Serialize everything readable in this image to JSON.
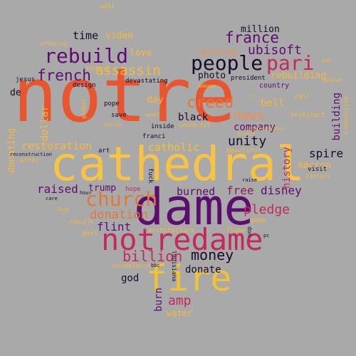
{
  "colors": {
    "background": "#a9a9a9",
    "palette": [
      "#e8562f",
      "#f6b93b",
      "#f1c232",
      "#5c0e6e",
      "#8b1d5a",
      "#c2295e",
      "#e3773a",
      "#1c0a2a",
      "#f08f4a"
    ]
  },
  "words": [
    {
      "text": "notre",
      "color": "#e8562f"
    },
    {
      "text": "cathedral",
      "color": "#f6c344"
    },
    {
      "text": "dame",
      "color": "#5c0e6e"
    },
    {
      "text": "notredame",
      "color": "#c2295e"
    },
    {
      "text": "fire",
      "color": "#f1c232"
    },
    {
      "text": "people",
      "color": "#1c0a2a"
    },
    {
      "text": "pari",
      "color": "#c2295e"
    },
    {
      "text": "rebuild",
      "color": "#5c0e6e"
    },
    {
      "text": "church",
      "color": "#e3773a"
    },
    {
      "text": "france",
      "color": "#5c0e6e"
    },
    {
      "text": "ubisoft",
      "color": "#5c0e6e"
    },
    {
      "text": "french",
      "color": "#5c0e6e"
    },
    {
      "text": "assassin",
      "color": "#f6b93b"
    },
    {
      "text": "creed",
      "color": "#e3773a"
    },
    {
      "text": "money",
      "color": "#1c0a2a"
    },
    {
      "text": "billion",
      "color": "#c2295e"
    },
    {
      "text": "unity",
      "color": "#1c0a2a"
    },
    {
      "text": "news",
      "color": "#f08f4a"
    },
    {
      "text": "disney",
      "color": "#5c0e6e"
    },
    {
      "text": "free",
      "color": "#8b1d5a"
    },
    {
      "text": "pledge",
      "color": "#c2295e"
    },
    {
      "text": "donation",
      "color": "#e3773a"
    },
    {
      "text": "flint",
      "color": "#5c0e6e"
    },
    {
      "text": "restoration",
      "color": "#f6b93b"
    },
    {
      "text": "catholic",
      "color": "#f1c232"
    },
    {
      "text": "burned",
      "color": "#5c0e6e"
    },
    {
      "text": "spire",
      "color": "#1c0a2a"
    },
    {
      "text": "raised",
      "color": "#5c0e6e"
    },
    {
      "text": "trump",
      "color": "#5c0e6e"
    },
    {
      "text": "donate",
      "color": "#1c0a2a"
    },
    {
      "text": "amp",
      "color": "#c2295e"
    },
    {
      "text": "time",
      "color": "#1c0a2a"
    },
    {
      "text": "video",
      "color": "#f6b93b"
    },
    {
      "text": "million",
      "color": "#1c0a2a"
    },
    {
      "text": "burning",
      "color": "#f08f4a"
    },
    {
      "text": "photo",
      "color": "#1c0a2a"
    },
    {
      "text": "president",
      "color": "#1c0a2a"
    },
    {
      "text": "rebuilding",
      "color": "#f6b93b"
    },
    {
      "text": "country",
      "color": "#5c0e6e"
    },
    {
      "text": "love",
      "color": "#f6b93b"
    },
    {
      "text": "company",
      "color": "#5c0e6e"
    },
    {
      "text": "black",
      "color": "#1c0a2a"
    },
    {
      "text": "day",
      "color": "#f6b93b"
    },
    {
      "text": "bell",
      "color": "#f6b93b"
    },
    {
      "text": "de",
      "color": "#1c0a2a"
    },
    {
      "text": "dollar",
      "color": "#f6b93b"
    },
    {
      "text": "god",
      "color": "#1c0a2a"
    },
    {
      "text": "water",
      "color": "#f6b93b"
    },
    {
      "text": "burn",
      "color": "#5c0e6e"
    },
    {
      "text": "history",
      "color": "#c2295e"
    },
    {
      "text": "macron",
      "color": "#f6b93b"
    },
    {
      "text": "building",
      "color": "#5c0e6e"
    },
    {
      "text": "donating",
      "color": "#f6b93b"
    },
    {
      "text": "walt",
      "color": "#f6b93b"
    },
    {
      "text": "offering",
      "color": "#f6b93b"
    },
    {
      "text": "support",
      "color": "#f6b93b"
    },
    {
      "text": "jesus",
      "color": "#1c0a2a"
    },
    {
      "text": "design",
      "color": "#1c0a2a"
    },
    {
      "text": "devastating",
      "color": "#1c0a2a"
    },
    {
      "text": "inside",
      "color": "#1c0a2a"
    },
    {
      "text": "wonderful",
      "color": "#f6b93b"
    },
    {
      "text": "architect",
      "color": "#f6b93b"
    },
    {
      "text": "call",
      "color": "#f6b93b"
    },
    {
      "text": "pope",
      "color": "#1c0a2a"
    },
    {
      "text": "save",
      "color": "#1c0a2a"
    },
    {
      "text": "week",
      "color": "#f6b93b"
    },
    {
      "text": "muslim",
      "color": "#f6b93b"
    },
    {
      "text": "franci",
      "color": "#1c0a2a"
    },
    {
      "text": "art",
      "color": "#1c0a2a"
    },
    {
      "text": "beautiful",
      "color": "#f6b93b"
    },
    {
      "text": "visit",
      "color": "#1c0a2a"
    },
    {
      "text": "restore",
      "color": "#f6b93b"
    },
    {
      "text": "raise",
      "color": "#1c0a2a"
    },
    {
      "text": "hope",
      "color": "#c2295e"
    },
    {
      "text": "hour",
      "color": "#1c0a2a"
    },
    {
      "text": "care",
      "color": "#1c0a2a"
    },
    {
      "text": "fund",
      "color": "#f6b93b"
    },
    {
      "text": "rebuilt",
      "color": "#f6b93b"
    },
    {
      "text": "post",
      "color": "#f6b93b"
    },
    {
      "text": "architecture",
      "color": "#f6b93b"
    },
    {
      "text": "flame",
      "color": "#f6b93b"
    },
    {
      "text": "game",
      "color": "#f6b93b"
    },
    {
      "text": "don",
      "color": "#1c0a2a"
    },
    {
      "text": "pc",
      "color": "#1c0a2a"
    },
    {
      "text": "condolence",
      "color": "#f6b93b"
    },
    {
      "text": "bbc",
      "color": "#1c0a2a"
    },
    {
      "text": "louisiana",
      "color": "#1c0a2a"
    },
    {
      "text": "reconstruction",
      "color": "#1c0a2a"
    },
    {
      "text": "offer",
      "color": "#f6b93b"
    },
    {
      "text": "sad",
      "color": "#f6b93b"
    },
    {
      "text": "planet",
      "color": "#f6b93b"
    },
    {
      "text": "damage",
      "color": "#f6b93b"
    },
    {
      "text": "international",
      "color": "#f6b93b"
    },
    {
      "text": "place",
      "color": "#f6b93b"
    },
    {
      "text": "global",
      "color": "#f6b93b"
    },
    {
      "text": "fuck",
      "color": "#1c0a2a"
    },
    {
      "text": "billionaire",
      "color": "#f6b93b"
    },
    {
      "text": "rt",
      "color": "#f6b93b"
    }
  ]
}
